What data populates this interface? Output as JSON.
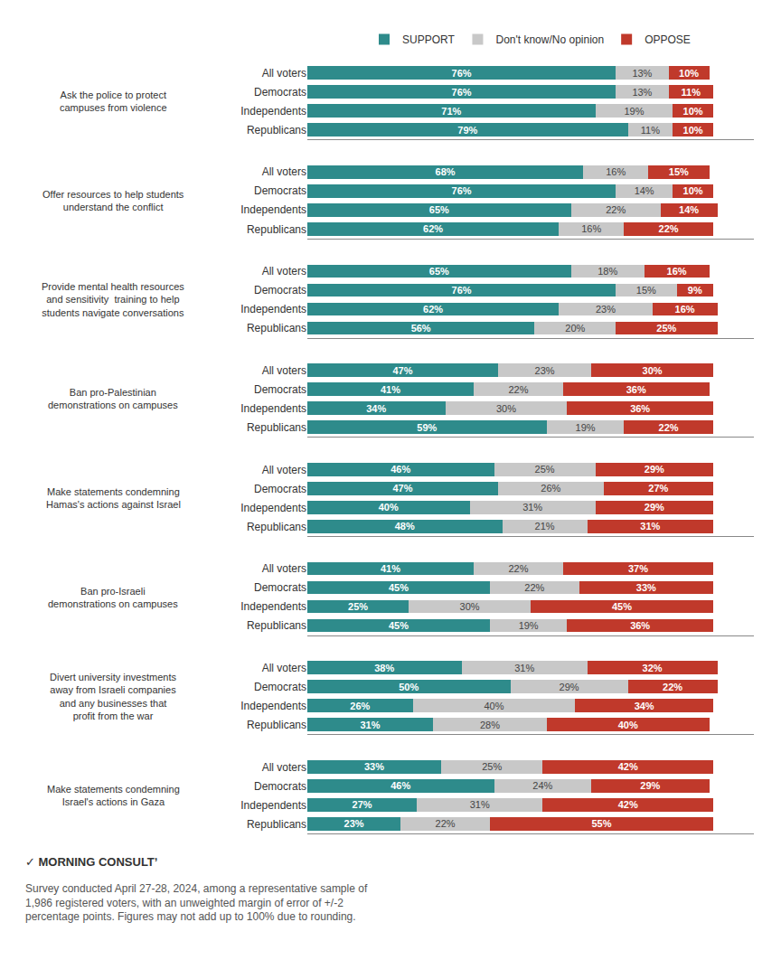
{
  "chart_data": [
    {
      "type": "bar",
      "orientation": "horizontal",
      "stacked": true,
      "data_labels": true,
      "tick_labels": "y",
      "grid": false,
      "legend": "top",
      "title": "Ask the police to protect\ncampuses from violence",
      "categories": [
        "All voters",
        "Democrats",
        "Independents",
        "Republicans"
      ],
      "xlim": [
        0,
        110
      ],
      "series": [
        {
          "name": "SUPPORT",
          "color": "#2e8b8b",
          "values": [
            76,
            76,
            71,
            79
          ],
          "value_labels": [
            "76%",
            "76%",
            "71%",
            "79%"
          ]
        },
        {
          "name": "Don't know/No opinion",
          "color": "#c8c8c8",
          "values": [
            13,
            13,
            19,
            11
          ],
          "value_labels": [
            "13%",
            "13%",
            "19%",
            "11%"
          ]
        },
        {
          "name": "OPPOSE",
          "color": "#c0392b",
          "values": [
            10,
            11,
            10,
            10
          ],
          "value_labels": [
            "10%",
            "11%",
            "10%",
            "10%"
          ]
        }
      ]
    },
    {
      "type": "bar",
      "orientation": "horizontal",
      "stacked": true,
      "data_labels": true,
      "tick_labels": "y",
      "grid": false,
      "title": "Offer resources to help students\nunderstand the conflict",
      "categories": [
        "All voters",
        "Democrats",
        "Independents",
        "Republicans"
      ],
      "xlim": [
        0,
        110
      ],
      "series": [
        {
          "name": "SUPPORT",
          "color": "#2e8b8b",
          "values": [
            68,
            76,
            65,
            62
          ],
          "value_labels": [
            "68%",
            "76%",
            "65%",
            "62%"
          ]
        },
        {
          "name": "Don't know/No opinion",
          "color": "#c8c8c8",
          "values": [
            16,
            14,
            22,
            16
          ],
          "value_labels": [
            "16%",
            "14%",
            "22%",
            "16%"
          ]
        },
        {
          "name": "OPPOSE",
          "color": "#c0392b",
          "values": [
            15,
            10,
            14,
            22
          ],
          "value_labels": [
            "15%",
            "10%",
            "14%",
            "22%"
          ]
        }
      ]
    },
    {
      "type": "bar",
      "orientation": "horizontal",
      "stacked": true,
      "data_labels": true,
      "tick_labels": "y",
      "grid": false,
      "title": "Provide mental health resources\nand sensitivity  training to help\nstudents navigate conversations",
      "categories": [
        "All voters",
        "Democrats",
        "Independents",
        "Republicans"
      ],
      "xlim": [
        0,
        110
      ],
      "series": [
        {
          "name": "SUPPORT",
          "color": "#2e8b8b",
          "values": [
            65,
            76,
            62,
            56
          ],
          "value_labels": [
            "65%",
            "76%",
            "62%",
            "56%"
          ]
        },
        {
          "name": "Don't know/No opinion",
          "color": "#c8c8c8",
          "values": [
            18,
            15,
            23,
            20
          ],
          "value_labels": [
            "18%",
            "15%",
            "23%",
            "20%"
          ]
        },
        {
          "name": "OPPOSE",
          "color": "#c0392b",
          "values": [
            16,
            9,
            16,
            25
          ],
          "value_labels": [
            "16%",
            "9%",
            "16%",
            "25%"
          ]
        }
      ]
    },
    {
      "type": "bar",
      "orientation": "horizontal",
      "stacked": true,
      "data_labels": true,
      "tick_labels": "y",
      "grid": false,
      "title": "Ban pro-Palestinian\ndemonstrations on campuses",
      "categories": [
        "All voters",
        "Democrats",
        "Independents",
        "Republicans"
      ],
      "xlim": [
        0,
        110
      ],
      "series": [
        {
          "name": "SUPPORT",
          "color": "#2e8b8b",
          "values": [
            47,
            41,
            34,
            59
          ],
          "value_labels": [
            "47%",
            "41%",
            "34%",
            "59%"
          ]
        },
        {
          "name": "Don't know/No opinion",
          "color": "#c8c8c8",
          "values": [
            23,
            22,
            30,
            19
          ],
          "value_labels": [
            "23%",
            "22%",
            "30%",
            "19%"
          ]
        },
        {
          "name": "OPPOSE",
          "color": "#c0392b",
          "values": [
            30,
            36,
            36,
            22
          ],
          "value_labels": [
            "30%",
            "36%",
            "36%",
            "22%"
          ]
        }
      ]
    },
    {
      "type": "bar",
      "orientation": "horizontal",
      "stacked": true,
      "data_labels": true,
      "tick_labels": "y",
      "grid": false,
      "title": "Make statements condemning\nHamas's actions against Israel",
      "categories": [
        "All voters",
        "Democrats",
        "Independents",
        "Republicans"
      ],
      "xlim": [
        0,
        110
      ],
      "series": [
        {
          "name": "SUPPORT",
          "color": "#2e8b8b",
          "values": [
            46,
            47,
            40,
            48
          ],
          "value_labels": [
            "46%",
            "47%",
            "40%",
            "48%"
          ]
        },
        {
          "name": "Don't know/No opinion",
          "color": "#c8c8c8",
          "values": [
            25,
            26,
            31,
            21
          ],
          "value_labels": [
            "25%",
            "26%",
            "31%",
            "21%"
          ]
        },
        {
          "name": "OPPOSE",
          "color": "#c0392b",
          "values": [
            29,
            27,
            29,
            31
          ],
          "value_labels": [
            "29%",
            "27%",
            "29%",
            "31%"
          ]
        }
      ]
    },
    {
      "type": "bar",
      "orientation": "horizontal",
      "stacked": true,
      "data_labels": true,
      "tick_labels": "y",
      "grid": false,
      "title": "Ban pro-Israeli\ndemonstrations on campuses",
      "categories": [
        "All voters",
        "Democrats",
        "Independents",
        "Republicans"
      ],
      "xlim": [
        0,
        110
      ],
      "series": [
        {
          "name": "SUPPORT",
          "color": "#2e8b8b",
          "values": [
            41,
            45,
            25,
            45
          ],
          "value_labels": [
            "41%",
            "45%",
            "25%",
            "45%"
          ]
        },
        {
          "name": "Don't know/No opinion",
          "color": "#c8c8c8",
          "values": [
            22,
            22,
            30,
            19
          ],
          "value_labels": [
            "22%",
            "22%",
            "30%",
            "19%"
          ]
        },
        {
          "name": "OPPOSE",
          "color": "#c0392b",
          "values": [
            37,
            33,
            45,
            36
          ],
          "value_labels": [
            "37%",
            "33%",
            "45%",
            "36%"
          ]
        }
      ]
    },
    {
      "type": "bar",
      "orientation": "horizontal",
      "stacked": true,
      "data_labels": true,
      "tick_labels": "y",
      "grid": false,
      "title": "Divert university investments\naway from Israeli companies\nand any businesses that\nprofit from the war",
      "categories": [
        "All voters",
        "Democrats",
        "Independents",
        "Republicans"
      ],
      "xlim": [
        0,
        110
      ],
      "series": [
        {
          "name": "SUPPORT",
          "color": "#2e8b8b",
          "values": [
            38,
            50,
            26,
            31
          ],
          "value_labels": [
            "38%",
            "50%",
            "26%",
            "31%"
          ]
        },
        {
          "name": "Don't know/No opinion",
          "color": "#c8c8c8",
          "values": [
            31,
            29,
            40,
            28
          ],
          "value_labels": [
            "31%",
            "29%",
            "40%",
            "28%"
          ]
        },
        {
          "name": "OPPOSE",
          "color": "#c0392b",
          "values": [
            32,
            22,
            34,
            40
          ],
          "value_labels": [
            "32%",
            "22%",
            "34%",
            "40%"
          ]
        }
      ]
    },
    {
      "type": "bar",
      "orientation": "horizontal",
      "stacked": true,
      "data_labels": true,
      "tick_labels": "y",
      "grid": false,
      "title": "Make statements condemning\nIsrael's actions in Gaza",
      "categories": [
        "All voters",
        "Democrats",
        "Independents",
        "Republicans"
      ],
      "xlim": [
        0,
        110
      ],
      "series": [
        {
          "name": "SUPPORT",
          "color": "#2e8b8b",
          "values": [
            33,
            46,
            27,
            23
          ],
          "value_labels": [
            "33%",
            "46%",
            "27%",
            "23%"
          ]
        },
        {
          "name": "Don't know/No opinion",
          "color": "#c8c8c8",
          "values": [
            25,
            24,
            31,
            22
          ],
          "value_labels": [
            "25%",
            "24%",
            "31%",
            "22%"
          ]
        },
        {
          "name": "OPPOSE",
          "color": "#c0392b",
          "values": [
            42,
            29,
            42,
            55
          ],
          "value_labels": [
            "42%",
            "29%",
            "42%",
            "55%"
          ]
        }
      ],
      "annotations": [
        "✓ MORNING CONSULTʼ",
        "Survey conducted April 27-28, 2024, among a representative sample of\n1,986 registered voters, with an unweighted margin of error of +/-2\npercentage points. Figures may not add up to 100% due to rounding."
      ]
    }
  ]
}
